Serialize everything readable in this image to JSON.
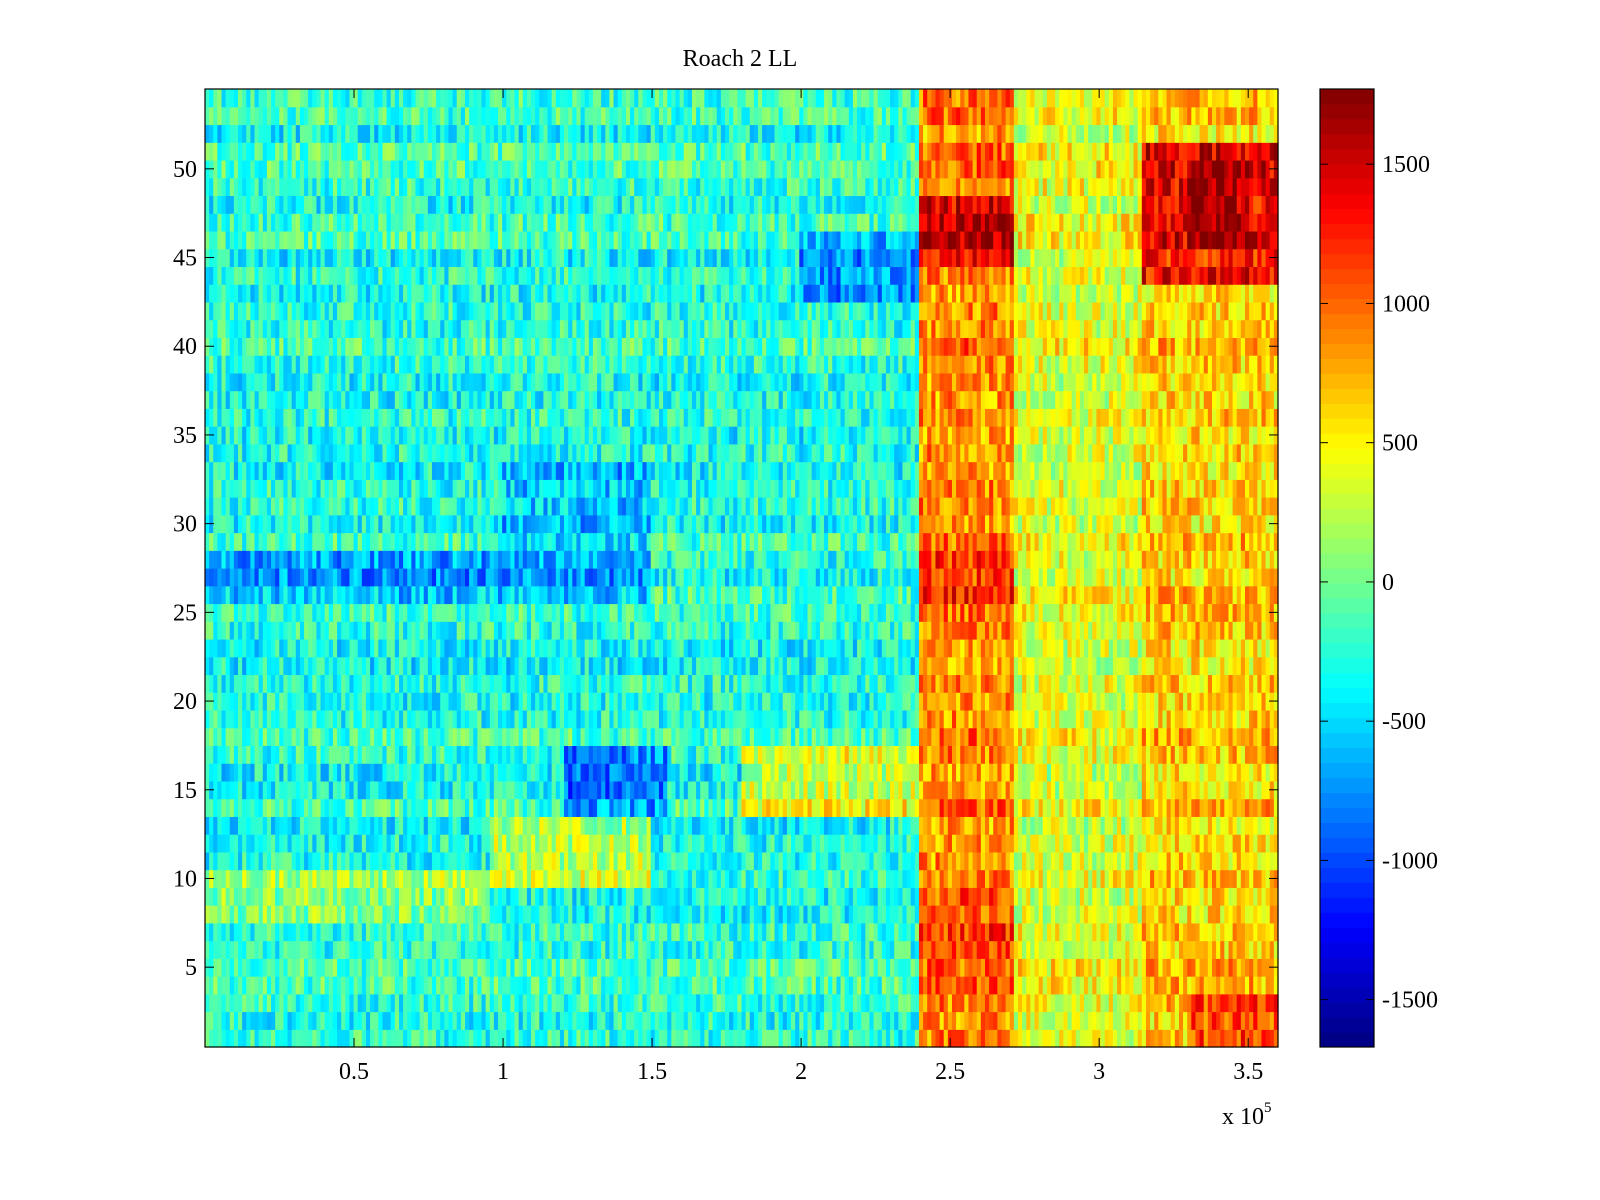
{
  "chart_data": {
    "type": "heatmap",
    "title": "Roach 2 LL",
    "xlabel": "",
    "ylabel": "",
    "x_multiplier": "x 10",
    "x_multiplier_exponent": "5",
    "xlim": [
      0,
      360000
    ],
    "ylim": [
      0.5,
      54.5
    ],
    "x_ticks": [
      {
        "value": 50000,
        "label": "0.5"
      },
      {
        "value": 100000,
        "label": "1"
      },
      {
        "value": 150000,
        "label": "1.5"
      },
      {
        "value": 200000,
        "label": "2"
      },
      {
        "value": 250000,
        "label": "2.5"
      },
      {
        "value": 300000,
        "label": "3"
      },
      {
        "value": 350000,
        "label": "3.5"
      }
    ],
    "y_ticks": [
      {
        "value": 5,
        "label": "5"
      },
      {
        "value": 10,
        "label": "10"
      },
      {
        "value": 15,
        "label": "15"
      },
      {
        "value": 20,
        "label": "20"
      },
      {
        "value": 25,
        "label": "25"
      },
      {
        "value": 30,
        "label": "30"
      },
      {
        "value": 35,
        "label": "35"
      },
      {
        "value": 40,
        "label": "40"
      },
      {
        "value": 45,
        "label": "45"
      },
      {
        "value": 50,
        "label": "50"
      }
    ],
    "colorbar": {
      "colormap": "jet",
      "clim": [
        -1670,
        1770
      ],
      "ticks": [
        {
          "value": 1500,
          "label": "1500"
        },
        {
          "value": 1000,
          "label": "1000"
        },
        {
          "value": 500,
          "label": "500"
        },
        {
          "value": 0,
          "label": "0"
        },
        {
          "value": -500,
          "label": "-500"
        },
        {
          "value": -1000,
          "label": "-1000"
        },
        {
          "value": -1500,
          "label": "-1500"
        }
      ]
    },
    "rows": 54,
    "grid": false,
    "region_means": [
      {
        "x_range": [
          0,
          240000
        ],
        "y_range": [
          1,
          54
        ],
        "value": -250
      },
      {
        "x_range": [
          0,
          95000
        ],
        "y_range": [
          8,
          10
        ],
        "value": 150
      },
      {
        "x_range": [
          95000,
          150000
        ],
        "y_range": [
          10,
          13
        ],
        "value": 300
      },
      {
        "x_range": [
          120000,
          155000
        ],
        "y_range": [
          14,
          17
        ],
        "value": -800
      },
      {
        "x_range": [
          180000,
          240000
        ],
        "y_range": [
          14,
          17
        ],
        "value": 400
      },
      {
        "x_range": [
          0,
          150000
        ],
        "y_range": [
          26,
          28
        ],
        "value": -650
      },
      {
        "x_range": [
          100000,
          150000
        ],
        "y_range": [
          29,
          33
        ],
        "value": -550
      },
      {
        "x_range": [
          200000,
          240000
        ],
        "y_range": [
          43,
          46
        ],
        "value": -700
      },
      {
        "x_range": [
          240000,
          272000
        ],
        "y_range": [
          1,
          54
        ],
        "value": 900
      },
      {
        "x_range": [
          240000,
          272000
        ],
        "y_range": [
          45,
          48
        ],
        "value": 1500
      },
      {
        "x_range": [
          240000,
          272000
        ],
        "y_range": [
          6,
          9
        ],
        "value": 1150
      },
      {
        "x_range": [
          240000,
          272000
        ],
        "y_range": [
          26,
          28
        ],
        "value": 1200
      },
      {
        "x_range": [
          272000,
          315000
        ],
        "y_range": [
          1,
          54
        ],
        "value": 400
      },
      {
        "x_range": [
          315000,
          360000
        ],
        "y_range": [
          1,
          54
        ],
        "value": 650
      },
      {
        "x_range": [
          315000,
          360000
        ],
        "y_range": [
          44,
          51
        ],
        "value": 1350
      },
      {
        "x_range": [
          330000,
          350000
        ],
        "y_range": [
          46,
          50
        ],
        "value": 1650
      },
      {
        "x_range": [
          330000,
          360000
        ],
        "y_range": [
          1,
          3
        ],
        "value": 1100
      }
    ]
  }
}
